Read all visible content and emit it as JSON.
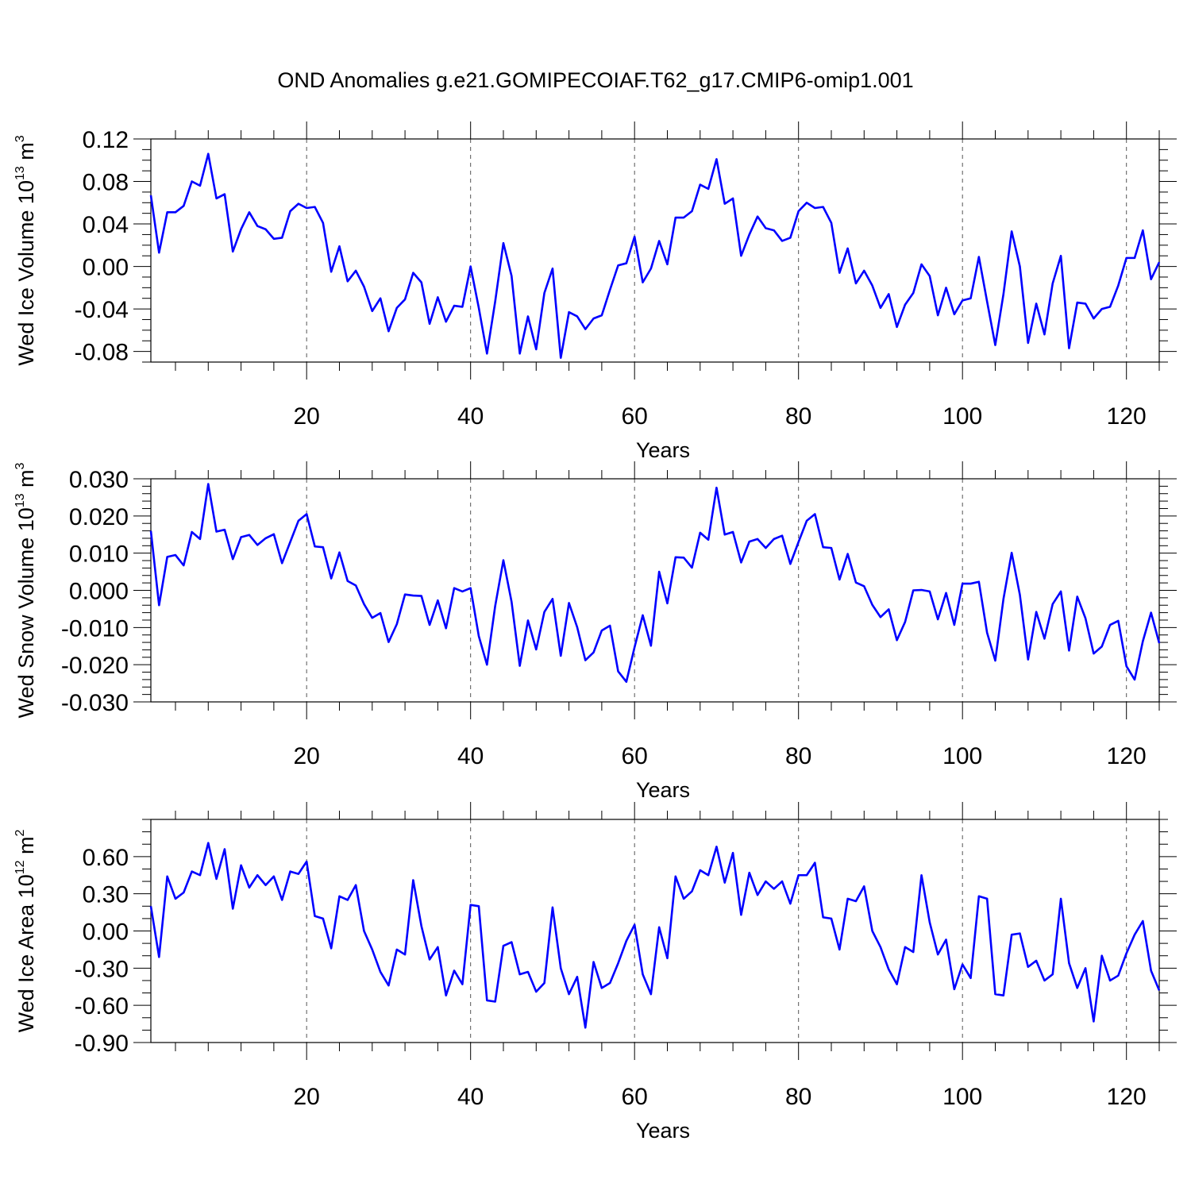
{
  "title": "OND Anomalies g.e21.GOMIPECOIAF.T62_g17.CMIP6-omip1.001",
  "line_color": "#0000ff",
  "chart_data": [
    {
      "type": "line",
      "title": "OND Anomalies g.e21.GOMIPECOIAF.T62_g17.CMIP6-omip1.001",
      "xlabel": "Years",
      "ylabel": {
        "main": "Wed Ice Volume 10",
        "sup": "13",
        "unit": " m",
        "unit_sup": "3"
      },
      "xlim": [
        1,
        124
      ],
      "ylim": [
        -0.09,
        0.12
      ],
      "xticks": [
        20,
        40,
        60,
        80,
        100,
        120
      ],
      "xtick_labels": [
        "20",
        "40",
        "60",
        "80",
        "100",
        "120"
      ],
      "yticks": [
        -0.08,
        -0.04,
        0.0,
        0.04,
        0.08,
        0.12
      ],
      "ytick_labels": [
        "-0.08",
        "-0.04",
        "0.00",
        "0.04",
        "0.08",
        "0.12"
      ],
      "y_minor_step": 0.01,
      "x_minor_step": 4,
      "series": [
        {
          "name": "Wed Ice Volume",
          "x_start": 1,
          "values": [
            0.067,
            0.013,
            0.051,
            0.051,
            0.057,
            0.08,
            0.076,
            0.106,
            0.064,
            0.068,
            0.014,
            0.035,
            0.051,
            0.038,
            0.035,
            0.026,
            0.027,
            0.052,
            0.059,
            0.055,
            0.056,
            0.041,
            -0.005,
            0.019,
            -0.014,
            -0.004,
            -0.019,
            -0.042,
            -0.03,
            -0.061,
            -0.039,
            -0.031,
            -0.006,
            -0.015,
            -0.054,
            -0.029,
            -0.052,
            -0.037,
            -0.038,
            0.0,
            -0.039,
            -0.082,
            -0.033,
            0.022,
            -0.009,
            -0.082,
            -0.047,
            -0.078,
            -0.025,
            -0.002,
            -0.086,
            -0.043,
            -0.047,
            -0.059,
            -0.049,
            -0.046,
            -0.022,
            0.001,
            0.003,
            0.028,
            -0.015,
            -0.002,
            0.024,
            0.002,
            0.046,
            0.046,
            0.052,
            0.077,
            0.073,
            0.101,
            0.059,
            0.064,
            0.01,
            0.03,
            0.047,
            0.036,
            0.034,
            0.024,
            0.027,
            0.052,
            0.06,
            0.055,
            0.056,
            0.041,
            -0.006,
            0.017,
            -0.016,
            -0.004,
            -0.018,
            -0.039,
            -0.026,
            -0.057,
            -0.036,
            -0.025,
            0.002,
            -0.009,
            -0.046,
            -0.02,
            -0.045,
            -0.032,
            -0.03,
            0.009,
            -0.033,
            -0.074,
            -0.026,
            0.033,
            0.0,
            -0.072,
            -0.035,
            -0.064,
            -0.016,
            0.01,
            -0.077,
            -0.034,
            -0.035,
            -0.049,
            -0.04,
            -0.038,
            -0.018,
            0.008,
            0.008,
            0.034,
            -0.012,
            0.004
          ]
        }
      ]
    },
    {
      "type": "line",
      "xlabel": "Years",
      "ylabel": {
        "main": "Wed Snow Volume 10",
        "sup": "13",
        "unit": " m",
        "unit_sup": "3"
      },
      "xlim": [
        1,
        124
      ],
      "ylim": [
        -0.03,
        0.03
      ],
      "xticks": [
        20,
        40,
        60,
        80,
        100,
        120
      ],
      "xtick_labels": [
        "20",
        "40",
        "60",
        "80",
        "100",
        "120"
      ],
      "yticks": [
        -0.03,
        -0.02,
        -0.01,
        0.0,
        0.01,
        0.02,
        0.03
      ],
      "ytick_labels": [
        "-0.030",
        "-0.020",
        "-0.010",
        "0.000",
        "0.010",
        "0.020",
        "0.030"
      ],
      "y_minor_step": 0.002,
      "x_minor_step": 4,
      "series": [
        {
          "name": "Wed Snow Volume",
          "x_start": 1,
          "values": [
            0.016,
            -0.004,
            0.009,
            0.0095,
            0.0067,
            0.0157,
            0.0138,
            0.0286,
            0.0158,
            0.0163,
            0.0084,
            0.0143,
            0.0149,
            0.0122,
            0.014,
            0.0151,
            0.0073,
            0.013,
            0.0187,
            0.0205,
            0.0118,
            0.0116,
            0.0032,
            0.0102,
            0.0025,
            0.0013,
            -0.0037,
            -0.0074,
            -0.0061,
            -0.0139,
            -0.0091,
            -0.0011,
            -0.0014,
            -0.0015,
            -0.0093,
            -0.0027,
            -0.0102,
            0.0006,
            -0.0003,
            0.0006,
            -0.0123,
            -0.02,
            -0.0042,
            0.0081,
            -0.0031,
            -0.0203,
            -0.0081,
            -0.0159,
            -0.0058,
            -0.0023,
            -0.0176,
            -0.0034,
            -0.0099,
            -0.0188,
            -0.0167,
            -0.0108,
            -0.0095,
            -0.0218,
            -0.0246,
            -0.0153,
            -0.0067,
            -0.0149,
            0.005,
            -0.0035,
            0.0089,
            0.0088,
            0.0061,
            0.0155,
            0.0136,
            0.0276,
            0.015,
            0.0157,
            0.0075,
            0.0131,
            0.0138,
            0.0114,
            0.0138,
            0.0147,
            0.0071,
            0.013,
            0.0187,
            0.0205,
            0.0116,
            0.0114,
            0.0029,
            0.0098,
            0.0021,
            0.0011,
            -0.0039,
            -0.0072,
            -0.0051,
            -0.0134,
            -0.0085,
            0.0,
            0.0001,
            -0.0003,
            -0.0078,
            -0.0007,
            -0.0093,
            0.0018,
            0.0018,
            0.0023,
            -0.0114,
            -0.0189,
            -0.0023,
            0.0101,
            -0.0012,
            -0.0186,
            -0.0058,
            -0.013,
            -0.0037,
            -0.0003,
            -0.0162,
            -0.0017,
            -0.0075,
            -0.017,
            -0.0151,
            -0.0093,
            -0.0082,
            -0.0204,
            -0.024,
            -0.0137,
            -0.006,
            -0.0142
          ]
        }
      ]
    },
    {
      "type": "line",
      "xlabel": "Years",
      "ylabel": {
        "main": "Wed Ice Area 10",
        "sup": "12",
        "unit": " m",
        "unit_sup": "2"
      },
      "xlim": [
        1,
        124
      ],
      "ylim": [
        -0.9,
        0.9
      ],
      "xticks": [
        20,
        40,
        60,
        80,
        100,
        120
      ],
      "xtick_labels": [
        "20",
        "40",
        "60",
        "80",
        "100",
        "120"
      ],
      "yticks": [
        -0.9,
        -0.6,
        -0.3,
        0.0,
        0.3,
        0.6
      ],
      "ytick_labels": [
        "-0.90",
        "-0.60",
        "-0.30",
        "0.00",
        "0.30",
        "0.60"
      ],
      "y_minor_step": 0.1,
      "x_minor_step": 4,
      "series": [
        {
          "name": "Wed Ice Area",
          "x_start": 1,
          "values": [
            0.2,
            -0.21,
            0.44,
            0.26,
            0.31,
            0.48,
            0.45,
            0.71,
            0.42,
            0.66,
            0.18,
            0.53,
            0.35,
            0.45,
            0.37,
            0.44,
            0.25,
            0.48,
            0.46,
            0.56,
            0.12,
            0.1,
            -0.14,
            0.28,
            0.25,
            0.37,
            0.0,
            -0.15,
            -0.33,
            -0.44,
            -0.15,
            -0.19,
            0.41,
            0.04,
            -0.23,
            -0.13,
            -0.52,
            -0.32,
            -0.43,
            0.21,
            0.2,
            -0.56,
            -0.57,
            -0.12,
            -0.09,
            -0.35,
            -0.33,
            -0.49,
            -0.42,
            0.19,
            -0.3,
            -0.51,
            -0.37,
            -0.78,
            -0.25,
            -0.46,
            -0.42,
            -0.26,
            -0.08,
            0.05,
            -0.35,
            -0.51,
            0.03,
            -0.22,
            0.44,
            0.26,
            0.32,
            0.49,
            0.45,
            0.68,
            0.39,
            0.63,
            0.13,
            0.47,
            0.29,
            0.4,
            0.34,
            0.4,
            0.22,
            0.45,
            0.45,
            0.55,
            0.11,
            0.1,
            -0.15,
            0.26,
            0.24,
            0.36,
            0.0,
            -0.13,
            -0.31,
            -0.43,
            -0.13,
            -0.17,
            0.45,
            0.07,
            -0.19,
            -0.07,
            -0.47,
            -0.27,
            -0.38,
            0.28,
            0.26,
            -0.51,
            -0.52,
            -0.03,
            -0.02,
            -0.29,
            -0.24,
            -0.4,
            -0.35,
            0.26,
            -0.26,
            -0.46,
            -0.3,
            -0.73,
            -0.2,
            -0.4,
            -0.36,
            -0.18,
            -0.03,
            0.08,
            -0.32,
            -0.48
          ]
        }
      ]
    }
  ]
}
